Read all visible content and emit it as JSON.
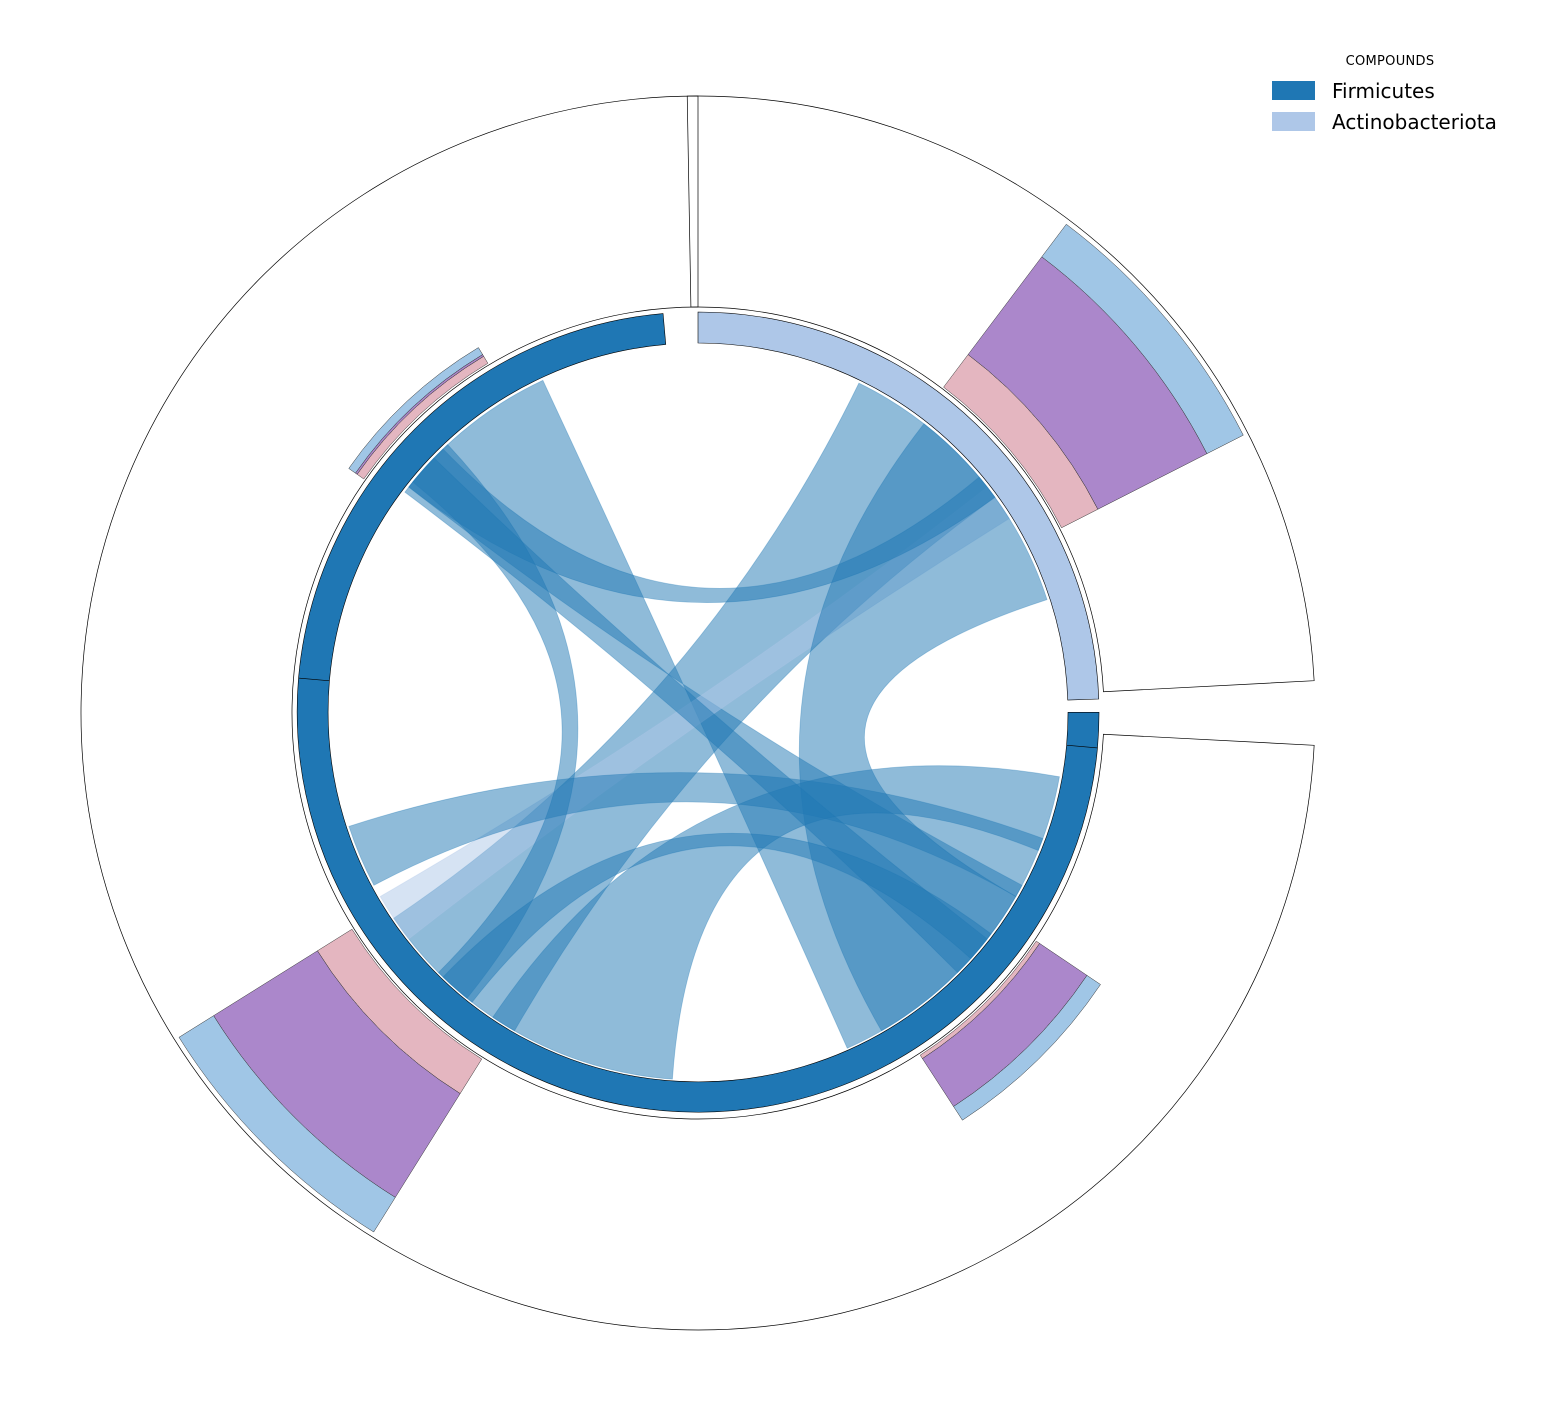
{
  "chart_data": {
    "type": "chord",
    "legend": {
      "title": "COMPOUNDS",
      "placement": "top-right",
      "entries": [
        {
          "name": "Firmicutes",
          "color": "#1f77b4"
        },
        {
          "name": "Actinobacteriota",
          "color": "#aec7e8"
        }
      ]
    },
    "groups": [
      {
        "id": "firmicutes",
        "phylum": "Firmicutes",
        "color": "#1f77b4",
        "start_deg": -175,
        "end_deg": 5,
        "start_deg_main": 95,
        "end_deg_main": 360
      },
      {
        "id": "actinobacteriota",
        "phylum": "Actinobacteriota",
        "color": "#aec7e8",
        "start_deg": 0,
        "end_deg": 88
      }
    ],
    "outer_sectors": [
      {
        "start_deg": 90,
        "end_deg": 357
      },
      {
        "start_deg": 3,
        "end_deg": 91
      }
    ],
    "stacked_bars": [
      {
        "start_deg": 27,
        "end_deg": 53,
        "segments": [
          {
            "color": "#e4b6c0",
            "value": 1
          },
          {
            "color": "#ab87cb",
            "value": 3
          },
          {
            "color": "#a0c6e6",
            "value": 1
          }
        ]
      },
      {
        "start_deg": 238,
        "end_deg": 212,
        "segments": [
          {
            "color": "#e4b6c0",
            "value": 1
          },
          {
            "color": "#ab87cb",
            "value": 3
          },
          {
            "color": "#a0c6e6",
            "value": 1
          }
        ]
      },
      {
        "start_deg": 303,
        "end_deg": 326,
        "segments": [
          {
            "color": "#e4b6c0",
            "value": 0.1
          },
          {
            "color": "#ab87cb",
            "value": 1.4
          },
          {
            "color": "#a0c6e6",
            "value": 0.4
          }
        ]
      },
      {
        "start_deg": 121,
        "end_deg": 145,
        "segments": [
          {
            "color": "#e4b6c0",
            "value": 0.2
          },
          {
            "color": "#ab87cb",
            "value": 0.05
          },
          {
            "color": "#a0c6e6",
            "value": 0.2
          }
        ]
      }
    ],
    "chords": [
      {
        "from": [
          115,
          142
        ],
        "to": [
          332,
          294
        ],
        "color": "#1f77b4",
        "opacity": 0.5
      },
      {
        "from": [
          36,
          64
        ],
        "to": [
          214,
          240
        ],
        "color": "#1f77b4",
        "opacity": 0.5
      },
      {
        "from": [
          32,
          38
        ],
        "to": [
          210,
          218
        ],
        "color": "#aec7e8",
        "opacity": 0.5
      },
      {
        "from": [
          198,
          208
        ],
        "to": [
          330,
          340
        ],
        "color": "#1f77b4",
        "opacity": 0.5
      },
      {
        "from": [
          300,
          330
        ],
        "to": [
          18,
          52
        ],
        "color": "#1f77b4",
        "opacity": 0.5
      },
      {
        "from": [
          236,
          266
        ],
        "to": [
          338,
          350
        ],
        "color": "#1f77b4",
        "opacity": 0.5
      },
      {
        "from": [
          134,
          142
        ],
        "to": [
          36,
          40
        ],
        "color": "#1f77b4",
        "opacity": 0.5
      },
      {
        "from": [
          133,
          141
        ],
        "to": [
          225,
          231
        ],
        "color": "#1f77b4",
        "opacity": 0.5
      },
      {
        "from": [
          136,
          143
        ],
        "to": [
          315,
          322
        ],
        "color": "#1f77b4",
        "opacity": 0.5
      },
      {
        "from": [
          226,
          232
        ],
        "to": [
          318,
          323
        ],
        "color": "#1f77b4",
        "opacity": 0.5
      }
    ]
  }
}
